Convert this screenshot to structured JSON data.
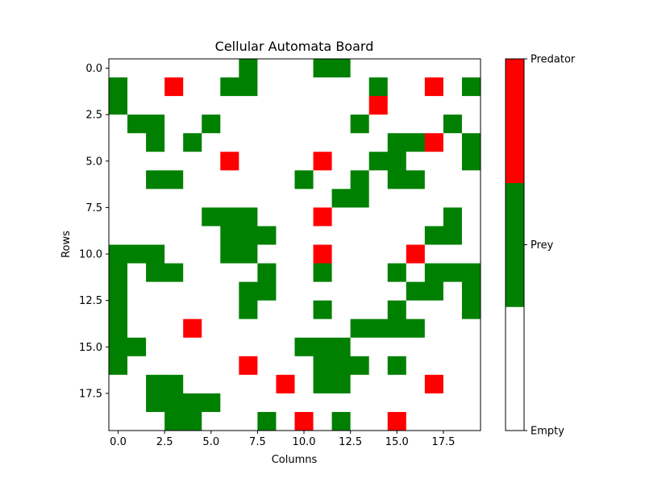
{
  "chart_data": {
    "type": "heatmap",
    "title": "Cellular Automata Board",
    "xlabel": "Columns",
    "ylabel": "Rows",
    "x_ticks": [
      "0.0",
      "2.5",
      "5.0",
      "7.5",
      "10.0",
      "12.5",
      "15.0",
      "17.5"
    ],
    "y_ticks": [
      "0.0",
      "2.5",
      "5.0",
      "7.5",
      "10.0",
      "12.5",
      "15.0",
      "17.5"
    ],
    "xlim": [
      -0.5,
      19.5
    ],
    "ylim": [
      19.5,
      -0.5
    ],
    "colors": {
      "0": "#ffffff",
      "1": "#008000",
      "2": "#ff0000"
    },
    "colorbar": {
      "labels": [
        "Empty",
        "Prey",
        "Predator"
      ],
      "values": [
        0,
        1,
        2
      ]
    },
    "grid": [
      [
        0,
        0,
        0,
        0,
        0,
        0,
        0,
        1,
        0,
        0,
        0,
        1,
        1,
        0,
        0,
        0,
        0,
        0,
        0,
        0
      ],
      [
        1,
        0,
        0,
        2,
        0,
        0,
        1,
        1,
        0,
        0,
        0,
        0,
        0,
        0,
        1,
        0,
        0,
        2,
        0,
        1
      ],
      [
        1,
        0,
        0,
        0,
        0,
        0,
        0,
        0,
        0,
        0,
        0,
        0,
        0,
        0,
        2,
        0,
        0,
        0,
        0,
        0
      ],
      [
        0,
        1,
        1,
        0,
        0,
        1,
        0,
        0,
        0,
        0,
        0,
        0,
        0,
        1,
        0,
        0,
        0,
        0,
        1,
        0
      ],
      [
        0,
        0,
        1,
        0,
        1,
        0,
        0,
        0,
        0,
        0,
        0,
        0,
        0,
        0,
        0,
        1,
        1,
        2,
        0,
        1
      ],
      [
        0,
        0,
        0,
        0,
        0,
        0,
        2,
        0,
        0,
        0,
        0,
        2,
        0,
        0,
        1,
        1,
        0,
        0,
        0,
        1
      ],
      [
        0,
        0,
        1,
        1,
        0,
        0,
        0,
        0,
        0,
        0,
        1,
        0,
        0,
        1,
        0,
        1,
        1,
        0,
        0,
        0
      ],
      [
        0,
        0,
        0,
        0,
        0,
        0,
        0,
        0,
        0,
        0,
        0,
        0,
        1,
        1,
        0,
        0,
        0,
        0,
        0,
        0
      ],
      [
        0,
        0,
        0,
        0,
        0,
        1,
        1,
        1,
        0,
        0,
        0,
        2,
        0,
        0,
        0,
        0,
        0,
        0,
        1,
        0
      ],
      [
        0,
        0,
        0,
        0,
        0,
        0,
        1,
        1,
        1,
        0,
        0,
        0,
        0,
        0,
        0,
        0,
        0,
        1,
        1,
        0
      ],
      [
        1,
        1,
        1,
        0,
        0,
        0,
        1,
        1,
        0,
        0,
        0,
        2,
        0,
        0,
        0,
        0,
        2,
        0,
        0,
        0
      ],
      [
        1,
        0,
        1,
        1,
        0,
        0,
        0,
        0,
        1,
        0,
        0,
        1,
        0,
        0,
        0,
        1,
        0,
        1,
        1,
        1
      ],
      [
        1,
        0,
        0,
        0,
        0,
        0,
        0,
        1,
        1,
        0,
        0,
        0,
        0,
        0,
        0,
        0,
        1,
        1,
        0,
        1
      ],
      [
        1,
        0,
        0,
        0,
        0,
        0,
        0,
        1,
        0,
        0,
        0,
        1,
        0,
        0,
        0,
        1,
        0,
        0,
        0,
        1
      ],
      [
        1,
        0,
        0,
        0,
        2,
        0,
        0,
        0,
        0,
        0,
        0,
        0,
        0,
        1,
        1,
        1,
        1,
        0,
        0,
        0
      ],
      [
        1,
        1,
        0,
        0,
        0,
        0,
        0,
        0,
        0,
        0,
        1,
        1,
        1,
        0,
        0,
        0,
        0,
        0,
        0,
        0
      ],
      [
        1,
        0,
        0,
        0,
        0,
        0,
        0,
        2,
        0,
        0,
        0,
        1,
        1,
        1,
        0,
        1,
        0,
        0,
        0,
        0
      ],
      [
        0,
        0,
        1,
        1,
        0,
        0,
        0,
        0,
        0,
        2,
        0,
        1,
        1,
        0,
        0,
        0,
        0,
        2,
        0,
        0
      ],
      [
        0,
        0,
        1,
        1,
        1,
        1,
        0,
        0,
        0,
        0,
        0,
        0,
        0,
        0,
        0,
        0,
        0,
        0,
        0,
        0
      ],
      [
        0,
        0,
        0,
        1,
        1,
        0,
        0,
        0,
        1,
        0,
        2,
        0,
        1,
        0,
        0,
        2,
        0,
        0,
        0,
        0
      ]
    ]
  }
}
